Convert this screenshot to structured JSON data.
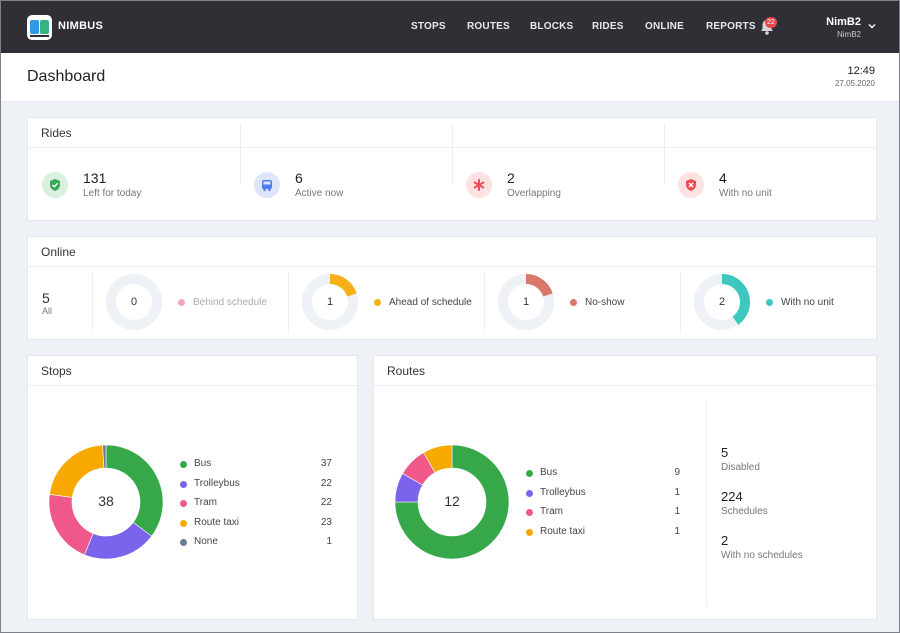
{
  "app": {
    "brand": "NIMBUS"
  },
  "nav": {
    "items": [
      "STOPS",
      "ROUTES",
      "BLOCKS",
      "RIDES",
      "ONLINE",
      "REPORTS"
    ],
    "notifications": "22",
    "user_name": "NimB2",
    "user_sub": "NimB2"
  },
  "header": {
    "title": "Dashboard",
    "time": "12:49",
    "date": "27.05.2020"
  },
  "rides": {
    "title": "Rides",
    "items": [
      {
        "value": "131",
        "label": "Left for today",
        "icon": "shield-check-icon",
        "bg": "#d9f0df",
        "fg": "#3aa757"
      },
      {
        "value": "6",
        "label": "Active now",
        "icon": "bus-icon",
        "bg": "#dde5fb",
        "fg": "#4a7bf0"
      },
      {
        "value": "2",
        "label": "Overlapping",
        "icon": "asterisk-icon",
        "bg": "#fde2e2",
        "fg": "#ea4e53"
      },
      {
        "value": "4",
        "label": "With no unit",
        "icon": "shield-x-icon",
        "bg": "#fde2e2",
        "fg": "#ea4e53"
      }
    ]
  },
  "online": {
    "title": "Online",
    "all_value": "5",
    "all_label": "All",
    "items": [
      {
        "value": "0",
        "fraction": 0,
        "label": "Behind schedule",
        "color": "#f3a6b4",
        "label_color": "#aaaaaa"
      },
      {
        "value": "1",
        "fraction": 0.2,
        "label": "Ahead of schedule",
        "color": "#f7b017",
        "label_color": "#444444"
      },
      {
        "value": "1",
        "fraction": 0.2,
        "label": "No-show",
        "color": "#d9786a",
        "label_color": "#444444"
      },
      {
        "value": "2",
        "fraction": 0.4,
        "label": "With no unit",
        "color": "#3ec6c1",
        "label_color": "#444444"
      }
    ]
  },
  "stops": {
    "title": "Stops",
    "total": "38",
    "legend": [
      {
        "name": "Bus",
        "count": "37",
        "value": 37,
        "color": "#36a84a"
      },
      {
        "name": "Trolleybus",
        "count": "22",
        "value": 22,
        "color": "#7b64eb"
      },
      {
        "name": "Tram",
        "count": "22",
        "value": 22,
        "color": "#f0588a"
      },
      {
        "name": "Route taxi",
        "count": "23",
        "value": 23,
        "color": "#f7a900"
      },
      {
        "name": "None",
        "count": "1",
        "value": 1,
        "color": "#6b7a96"
      }
    ]
  },
  "routes": {
    "title": "Routes",
    "total": "12",
    "legend": [
      {
        "name": "Bus",
        "count": "9",
        "value": 9,
        "color": "#36a84a"
      },
      {
        "name": "Trolleybus",
        "count": "1",
        "value": 1,
        "color": "#7b64eb"
      },
      {
        "name": "Tram",
        "count": "1",
        "value": 1,
        "color": "#f0588a"
      },
      {
        "name": "Route taxi",
        "count": "1",
        "value": 1,
        "color": "#f7a900"
      }
    ],
    "stats": [
      {
        "value": "5",
        "label": "Disabled"
      },
      {
        "value": "224",
        "label": "Schedules"
      },
      {
        "value": "2",
        "label": "With no schedules"
      }
    ]
  }
}
